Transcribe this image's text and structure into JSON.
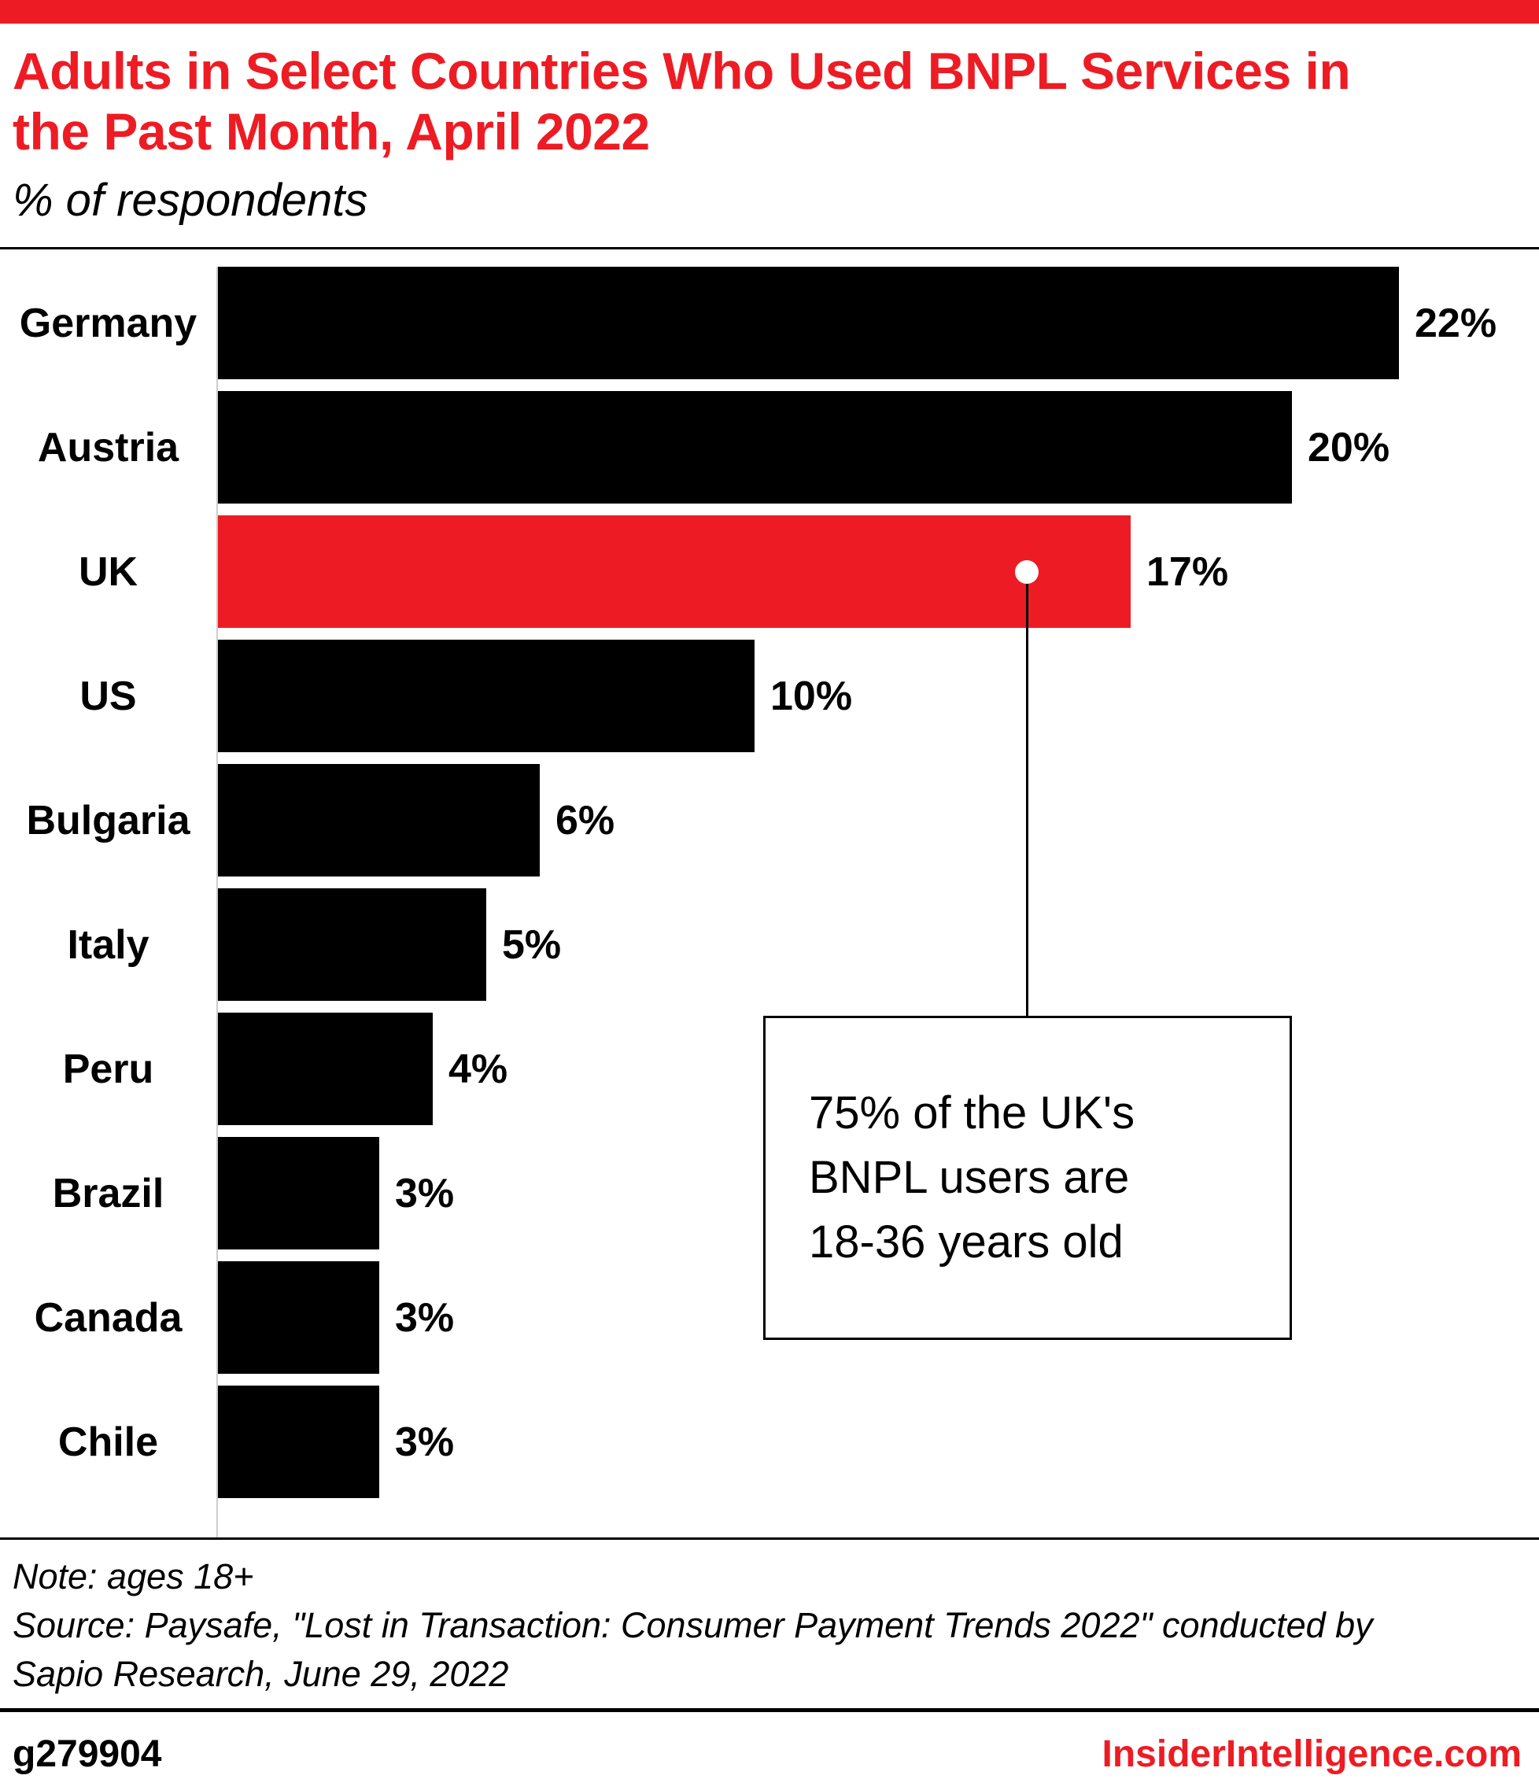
{
  "colors": {
    "accent_red": "#ed1c24",
    "bar_black": "#000000",
    "axis_gray": "#cccccc"
  },
  "header": {
    "title": "Adults in Select Countries Who Used BNPL Services in\nthe Past Month, April 2022",
    "subtitle": "% of respondents"
  },
  "chart_data": {
    "type": "bar",
    "orientation": "horizontal",
    "title": "Adults in Select Countries Who Used BNPL Services in the Past Month, April 2022",
    "xlabel": "% of respondents",
    "categories": [
      "Germany",
      "Austria",
      "UK",
      "US",
      "Bulgaria",
      "Italy",
      "Peru",
      "Brazil",
      "Canada",
      "Chile"
    ],
    "values": [
      22,
      20,
      17,
      10,
      6,
      5,
      4,
      3,
      3,
      3
    ],
    "value_labels": [
      "22%",
      "20%",
      "17%",
      "10%",
      "6%",
      "5%",
      "4%",
      "3%",
      "3%",
      "3%"
    ],
    "xlim": [
      0,
      22
    ],
    "grid": false,
    "legend": false,
    "highlight_index": 2,
    "bar_color": "#000000",
    "highlight_color": "#ed1c24",
    "annotation": {
      "text": "75% of the UK's\nBNPL users are\n18-36 years old",
      "target_category": "UK"
    }
  },
  "footer": {
    "note": "Note: ages 18+",
    "source": "Source: Paysafe, \"Lost in Transaction: Consumer Payment Trends 2022\" conducted by\nSapio Research, June 29, 2022",
    "chart_id": "g279904",
    "brand": "InsiderIntelligence.com"
  }
}
